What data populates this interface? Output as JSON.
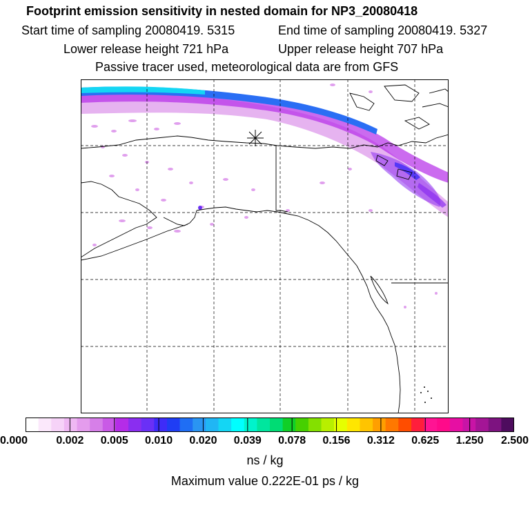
{
  "title": "Footprint emission sensitivity in nested domain for NP3_20080418",
  "header": {
    "start": "Start time of sampling 20080419.  5315",
    "end": "End time of sampling 20080419.  5327",
    "lower": "Lower release height  721 hPa",
    "upper": "Upper release height  707 hPa",
    "note": "Passive tracer used, meteorological data are from GFS"
  },
  "legend": {
    "colors": [
      "#ffffff",
      "#fbe8fb",
      "#f6d3f8",
      "#efb8f3",
      "#e49ced",
      "#d67fe8",
      "#c95ae6",
      "#b52ce8",
      "#8a2ef0",
      "#6a30f6",
      "#3e2cf8",
      "#1f3df4",
      "#1f6ef4",
      "#2a95f2",
      "#20b6f4",
      "#14d6f4",
      "#00ffff",
      "#00f3cc",
      "#00e69e",
      "#00dc74",
      "#10cf27",
      "#46d000",
      "#84e000",
      "#b8ef00",
      "#e6ff00",
      "#ffe600",
      "#ffc400",
      "#ff9f00",
      "#ff7800",
      "#ff4d00",
      "#ff1e3c",
      "#ff1493",
      "#ff0a8a",
      "#e60fa3",
      "#c814a6",
      "#a41596",
      "#7d1380",
      "#4e0c5e"
    ],
    "tick_labels": [
      "0.000",
      "0.002",
      "0.005",
      "0.010",
      "0.020",
      "0.039",
      "0.078",
      "0.156",
      "0.312",
      "0.625",
      "1.250",
      "2.500"
    ],
    "units": "ns / kg",
    "maximum": "Maximum value  0.222E-01 ps / kg"
  }
}
